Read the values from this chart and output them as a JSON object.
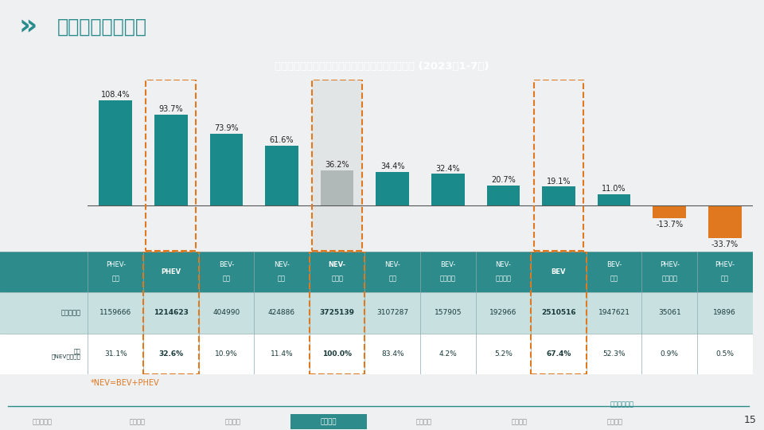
{
  "title": "新能源市场各品牌不同技术类型增速、销量和份额 (2023年1-7月)",
  "page_title": "品牌定位细分市场",
  "categories": [
    "PHEV-自主",
    "PHEV",
    "BEV-豪华",
    "NEV-豪华",
    "NEV-总市场",
    "NEV-自主",
    "BEV-主流合资",
    "NEV-主流合资",
    "BEV",
    "BEV-自主",
    "PHEV-主流合资",
    "PHEV-豪华"
  ],
  "values": [
    108.4,
    93.7,
    73.9,
    61.6,
    36.2,
    34.4,
    32.4,
    20.7,
    19.1,
    11.0,
    -13.7,
    -33.7
  ],
  "bar_colors": [
    "#1a8a8a",
    "#1a8a8a",
    "#1a8a8a",
    "#1a8a8a",
    "#b0b8b8",
    "#1a8a8a",
    "#1a8a8a",
    "#1a8a8a",
    "#1a8a8a",
    "#1a8a8a",
    "#e07820",
    "#e07820"
  ],
  "sales": [
    "1159666",
    "1214623",
    "404990",
    "424886",
    "3725139",
    "3107287",
    "157905",
    "192966",
    "2510516",
    "1947621",
    "35061",
    "19896"
  ],
  "share": [
    "31.1%",
    "32.6%",
    "10.9%",
    "11.4%",
    "100.0%",
    "83.4%",
    "4.2%",
    "5.2%",
    "67.4%",
    "52.3%",
    "0.9%",
    "0.5%"
  ],
  "bold_cols": [
    1,
    4,
    8
  ],
  "highlight_cols": [
    1,
    4,
    8
  ],
  "nev_col": 4,
  "bg_color": "#eef0f2",
  "header_bg": "#2a8c8c",
  "title_bg": "#2d8b8b",
  "table_header_bg": "#2d8b8b",
  "table_row1_bg": "#c8e0e0",
  "table_row2_bg": "#ffffff",
  "annotation_note": "*NEV=BEV+PHEV",
  "footer_bg": "#1a3a4a",
  "footer_line_color": "#2a8a8a",
  "tab_items": [
    "新能源市场",
    "技术类型",
    "车型大类",
    "品牌定位",
    "级别定位",
    "价格定位",
    "企业竞争"
  ],
  "active_tab": 3,
  "tab_active_bg": "#2d8b8b",
  "tab_inactive_color": "#888888",
  "page_num": "15",
  "ylim": [
    -48,
    130
  ],
  "row_labels": [
    "",
    "销量（辆）",
    "份额\n（NEV总市场）"
  ]
}
